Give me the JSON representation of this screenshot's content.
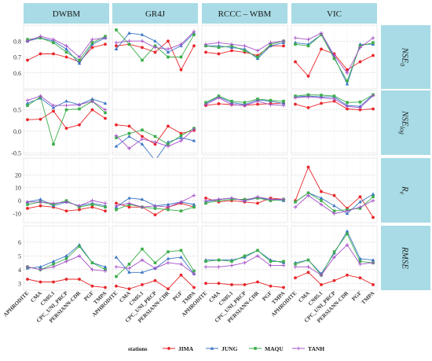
{
  "chart_data": {
    "type": "line",
    "columns": [
      "DWBM",
      "GR4J",
      "RCCC – WBM",
      "VIC"
    ],
    "rows": [
      {
        "key": "nse0",
        "label_main": "NSE",
        "label_sub": "0",
        "ylim": [
          0.5,
          0.9
        ],
        "ticks": [
          "0.6",
          "0.7",
          "0.8"
        ],
        "tick_values": [
          0.6,
          0.7,
          0.8
        ]
      },
      {
        "key": "nselog",
        "label_main": "NSE",
        "label_sub": "log",
        "ylim": [
          -0.55,
          0.95
        ],
        "ticks": [
          "-0.5",
          "0.0",
          "0.5"
        ],
        "tick_values": [
          -0.5,
          0.0,
          0.5
        ]
      },
      {
        "key": "re",
        "label_main": "R",
        "label_sub": "e",
        "ylim": [
          -17,
          33
        ],
        "ticks": [
          "-10",
          "0",
          "10",
          "20"
        ],
        "tick_values": [
          -10,
          0,
          10,
          20
        ]
      },
      {
        "key": "rmse",
        "label_main": "RMSE",
        "label_sub": "",
        "ylim": [
          2.5,
          7.2
        ],
        "ticks": [
          "3",
          "4",
          "5",
          "6"
        ],
        "tick_values": [
          3,
          4,
          5,
          6
        ]
      }
    ],
    "categories": [
      "APHRODITE",
      "CMA",
      "CN05.1",
      "CPC_UNI_PRCP",
      "PERSIANN-CDR",
      "PGF",
      "TMPA"
    ],
    "legend": {
      "title": "stations",
      "position": "bottom",
      "items": [
        {
          "name": "JIMA",
          "color": "#e8262a",
          "marker": "circle"
        },
        {
          "name": "JUNG",
          "color": "#3a75c4",
          "marker": "triangle"
        },
        {
          "name": "MAQU",
          "color": "#3dae4b",
          "marker": "square"
        },
        {
          "name": "TANH",
          "color": "#a650c8",
          "marker": "plus"
        }
      ]
    },
    "data": {
      "nse0": {
        "DWBM": {
          "JIMA": [
            0.68,
            0.72,
            0.72,
            0.7,
            0.67,
            0.76,
            0.78
          ],
          "JUNG": [
            0.8,
            0.82,
            0.8,
            0.75,
            0.66,
            0.78,
            0.82
          ],
          "MAQU": [
            0.81,
            0.82,
            0.79,
            0.73,
            0.68,
            0.79,
            0.83
          ],
          "TANH": [
            0.8,
            0.83,
            0.81,
            0.77,
            0.7,
            0.81,
            0.82
          ]
        },
        "GR4J": {
          "JIMA": [
            0.77,
            0.78,
            0.76,
            0.73,
            0.8,
            0.62,
            0.77
          ],
          "JUNG": [
            0.75,
            0.85,
            0.84,
            0.8,
            0.73,
            0.77,
            0.85
          ],
          "MAQU": [
            0.87,
            0.78,
            0.68,
            0.77,
            0.7,
            0.7,
            0.84
          ],
          "TANH": [
            0.79,
            0.8,
            0.8,
            0.76,
            0.75,
            0.78,
            0.86
          ]
        },
        "RCCC – WBM": {
          "JIMA": [
            0.73,
            0.72,
            0.74,
            0.73,
            0.71,
            0.77,
            0.77
          ],
          "JUNG": [
            0.77,
            0.77,
            0.76,
            0.75,
            0.69,
            0.77,
            0.79
          ],
          "MAQU": [
            0.77,
            0.76,
            0.77,
            0.74,
            0.7,
            0.78,
            0.8
          ],
          "TANH": [
            0.78,
            0.79,
            0.78,
            0.77,
            0.74,
            0.79,
            0.8
          ]
        },
        "VIC": {
          "JIMA": [
            0.67,
            0.58,
            0.75,
            0.72,
            0.62,
            0.67,
            0.71
          ],
          "JUNG": [
            0.79,
            0.78,
            0.84,
            0.7,
            0.53,
            0.78,
            0.78
          ],
          "MAQU": [
            0.78,
            0.77,
            0.84,
            0.69,
            0.55,
            0.77,
            0.79
          ],
          "TANH": [
            0.82,
            0.81,
            0.85,
            0.71,
            0.6,
            0.76,
            0.82
          ]
        }
      },
      "nselog": {
        "DWBM": {
          "JIMA": [
            0.27,
            0.28,
            0.47,
            0.07,
            0.15,
            0.5,
            0.3
          ],
          "JUNG": [
            0.65,
            0.77,
            0.55,
            0.7,
            0.62,
            0.75,
            0.65
          ],
          "MAQU": [
            0.6,
            0.8,
            -0.3,
            0.5,
            0.52,
            0.7,
            0.43
          ],
          "TANH": [
            0.72,
            0.82,
            0.6,
            0.6,
            0.62,
            0.7,
            0.5
          ]
        },
        "GR4J": {
          "JIMA": [
            0.15,
            0.12,
            -0.12,
            -0.3,
            0.12,
            -0.05,
            0.02
          ],
          "JUNG": [
            -0.35,
            -0.12,
            -0.3,
            -0.68,
            -0.25,
            -0.15,
            -0.22
          ],
          "MAQU": [
            -0.15,
            -0.05,
            0.03,
            -0.12,
            -0.3,
            -0.1,
            0.07
          ],
          "TANH": [
            -0.1,
            -0.4,
            -0.18,
            -0.25,
            -0.35,
            -0.22,
            0.05
          ]
        },
        "RCCC – WBM": {
          "JIMA": [
            0.6,
            0.64,
            0.62,
            0.6,
            0.63,
            0.64,
            0.66
          ],
          "JUNG": [
            0.65,
            0.8,
            0.67,
            0.62,
            0.73,
            0.7,
            0.65
          ],
          "MAQU": [
            0.67,
            0.82,
            0.7,
            0.67,
            0.75,
            0.72,
            0.7
          ],
          "TANH": [
            0.62,
            0.78,
            0.62,
            0.6,
            0.7,
            0.62,
            0.6
          ]
        },
        "VIC": {
          "JIMA": [
            0.63,
            0.55,
            0.65,
            0.7,
            0.52,
            0.5,
            0.52
          ],
          "JUNG": [
            0.8,
            0.82,
            0.8,
            0.8,
            0.6,
            0.58,
            0.85
          ],
          "MAQU": [
            0.82,
            0.85,
            0.84,
            0.82,
            0.67,
            0.68,
            0.85
          ],
          "TANH": [
            0.78,
            0.8,
            0.78,
            0.75,
            0.58,
            0.55,
            0.83
          ]
        }
      },
      "re": {
        "DWBM": {
          "JIMA": [
            -6,
            -4,
            -5,
            -8,
            -7,
            -5,
            -8
          ],
          "JUNG": [
            -1,
            1,
            -4,
            -1,
            -4,
            -2,
            -4
          ],
          "MAQU": [
            -3,
            -1,
            -3,
            0,
            -5,
            -3,
            -5
          ],
          "TANH": [
            -1,
            -1,
            -2,
            -1,
            -4,
            0,
            -2
          ]
        },
        "GR4J": {
          "JIMA": [
            -2,
            -5,
            -5,
            -11,
            -5,
            -2,
            -5
          ],
          "JUNG": [
            -5,
            2,
            1,
            -4,
            -3,
            -1,
            -3
          ],
          "MAQU": [
            -7,
            -3,
            -5,
            -6,
            -7,
            -8,
            -5
          ],
          "TANH": [
            -4,
            -2,
            -5,
            -4,
            -5,
            -1,
            4
          ]
        },
        "RCCC – WBM": {
          "JIMA": [
            2,
            -1,
            0,
            -1,
            -2,
            2,
            1
          ],
          "JUNG": [
            -1,
            1,
            2,
            0,
            2,
            1,
            0
          ],
          "MAQU": [
            -2,
            0,
            1,
            1,
            2,
            0,
            1
          ],
          "TANH": [
            0,
            1,
            2,
            0,
            3,
            1,
            1
          ]
        },
        "VIC": {
          "JIMA": [
            0,
            26,
            7,
            4,
            -6,
            3,
            -13
          ],
          "JUNG": [
            -1,
            6,
            2,
            -4,
            -10,
            -1,
            5
          ],
          "MAQU": [
            -1,
            6,
            0,
            -8,
            -7,
            -6,
            3
          ],
          "TANH": [
            -5,
            4,
            -3,
            -10,
            -8,
            -5,
            0
          ]
        }
      },
      "rmse": {
        "DWBM": {
          "JIMA": [
            3.3,
            3.1,
            3.1,
            3.3,
            3.3,
            2.8,
            2.7
          ],
          "JUNG": [
            4.1,
            4.2,
            4.6,
            5.0,
            5.8,
            4.5,
            4.2
          ],
          "MAQU": [
            4.2,
            4.0,
            4.4,
            4.8,
            5.7,
            4.5,
            4.0
          ],
          "TANH": [
            4.2,
            4.0,
            4.2,
            4.6,
            5.0,
            4.0,
            3.9
          ]
        },
        "GR4J": {
          "JIMA": [
            2.8,
            2.6,
            2.9,
            3.2,
            2.6,
            3.6,
            2.7
          ],
          "JUNG": [
            4.9,
            3.8,
            3.8,
            4.1,
            4.8,
            4.9,
            3.7
          ],
          "MAQU": [
            3.5,
            4.4,
            5.5,
            4.5,
            5.3,
            5.4,
            3.9
          ],
          "TANH": [
            4.2,
            4.1,
            4.7,
            4.1,
            4.5,
            4.4,
            3.7
          ]
        },
        "RCCC – WBM": {
          "JIMA": [
            3.0,
            3.0,
            2.9,
            2.9,
            3.1,
            2.8,
            2.7
          ],
          "JUNG": [
            4.7,
            4.7,
            4.7,
            4.9,
            5.4,
            4.7,
            4.5
          ],
          "MAQU": [
            4.6,
            4.7,
            4.6,
            5.0,
            5.4,
            4.6,
            4.6
          ],
          "TANH": [
            4.2,
            4.2,
            4.3,
            4.5,
            5.0,
            4.3,
            4.3
          ]
        },
        "VIC": {
          "JIMA": [
            3.4,
            3.8,
            2.9,
            3.2,
            3.6,
            3.4,
            2.9
          ],
          "JUNG": [
            4.5,
            4.7,
            3.7,
            5.2,
            6.8,
            4.8,
            4.7
          ],
          "MAQU": [
            4.4,
            4.7,
            3.6,
            5.3,
            6.6,
            4.6,
            4.5
          ],
          "TANH": [
            4.2,
            4.2,
            3.6,
            4.9,
            5.8,
            4.4,
            4.5
          ]
        }
      }
    }
  }
}
